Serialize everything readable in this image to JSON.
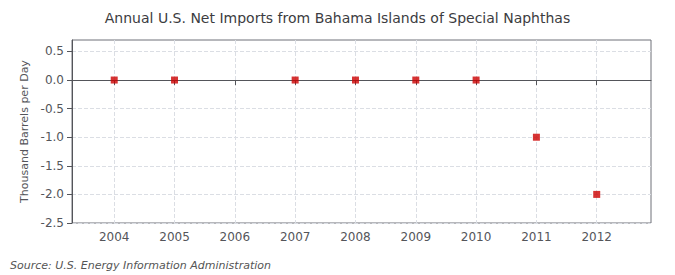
{
  "chart_data": {
    "type": "scatter",
    "title": "Annual U.S. Net Imports from Bahama Islands of Special Naphthas",
    "ylabel": "Thousand Barrels per Day",
    "source": "Source: U.S. Energy Information Administration",
    "x": [
      2004,
      2005,
      2006,
      2007,
      2008,
      2009,
      2010,
      2011,
      2012
    ],
    "values": [
      0,
      0,
      null,
      0,
      0,
      0,
      0,
      -1,
      -2
    ],
    "color": "#cc0000",
    "marker": "square",
    "xlim": [
      2003.3,
      2012.9
    ],
    "xticks": [
      2004,
      2005,
      2006,
      2007,
      2008,
      2009,
      2010,
      2011,
      2012
    ],
    "ylim": [
      -2.5,
      0.7
    ],
    "yticks": [
      0.5,
      {
        "value": 0,
        "label": "0.0"
      },
      -0.5,
      {
        "value": -1,
        "label": "-1.0"
      },
      -1.5,
      {
        "value": -2,
        "label": "-2.0"
      },
      -2.5
    ],
    "grid": true
  }
}
